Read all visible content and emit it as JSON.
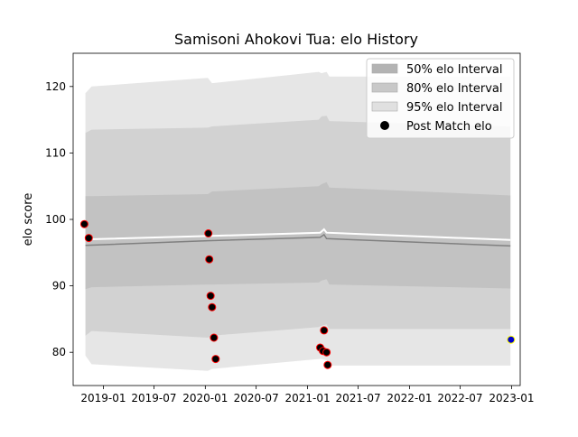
{
  "chart_data": {
    "type": "line",
    "title": "Samisoni Ahokovi Tua: elo History",
    "xlabel": "",
    "ylabel": "elo score",
    "xlim": [
      "2018-09-15",
      "2023-02-01"
    ],
    "ylim": [
      75,
      125
    ],
    "grid": false,
    "legend_placement": "top-right",
    "x_ticks": [
      "2019-01",
      "2019-07",
      "2020-01",
      "2020-07",
      "2021-01",
      "2021-07",
      "2022-01",
      "2022-07",
      "2023-01"
    ],
    "y_ticks": [
      80,
      90,
      100,
      110,
      120
    ],
    "legend": [
      {
        "label": "50% elo Interval",
        "kind": "band",
        "color": "#b3b3b3"
      },
      {
        "label": "80% elo Interval",
        "kind": "band",
        "color": "#c8c8c8"
      },
      {
        "label": "95% elo Interval",
        "kind": "band",
        "color": "#e0e0e0"
      },
      {
        "label": "Post Match elo",
        "kind": "marker",
        "color": "#000000"
      }
    ],
    "bands": {
      "x": [
        "2018-10-29",
        "2018-11-20",
        "2020-01-10",
        "2020-01-25",
        "2021-02-10",
        "2021-02-20",
        "2021-03-10",
        "2021-03-20",
        "2022-12-28"
      ],
      "p95_lower": [
        79.5,
        78.2,
        77.2,
        77.5,
        79.0,
        79.0,
        78.8,
        78.0,
        78.0
      ],
      "p95_upper": [
        119.0,
        120.0,
        121.3,
        120.5,
        122.2,
        122.0,
        122.2,
        121.5,
        121.5
      ],
      "p80_lower": [
        82.5,
        83.2,
        82.2,
        82.5,
        83.8,
        84.0,
        84.2,
        83.5,
        83.5
      ],
      "p80_upper": [
        113.0,
        113.5,
        113.8,
        114.0,
        115.0,
        115.5,
        115.6,
        114.8,
        114.0
      ],
      "p50_lower": [
        89.5,
        89.8,
        90.2,
        90.2,
        90.5,
        90.8,
        91.0,
        90.2,
        89.6
      ],
      "p50_upper": [
        103.5,
        103.5,
        103.8,
        104.2,
        105.0,
        105.3,
        105.6,
        104.8,
        103.6
      ]
    },
    "series": [
      {
        "name": "",
        "color": "#ffffff",
        "x": [
          "2018-10-29",
          "2020-01-10",
          "2021-02-15",
          "2021-03-01",
          "2021-03-10",
          "2022-12-28"
        ],
        "values": [
          97.0,
          97.5,
          98.0,
          98.5,
          98.0,
          96.9
        ]
      },
      {
        "name": "",
        "color": "#808080",
        "x": [
          "2018-10-29",
          "2020-01-10",
          "2021-02-15",
          "2021-03-01",
          "2021-03-10",
          "2022-12-28"
        ],
        "values": [
          96.1,
          96.8,
          97.3,
          97.7,
          97.1,
          96.0
        ]
      }
    ],
    "points": [
      {
        "x": "2018-10-25",
        "y": 99.3,
        "color": "#000000",
        "edge": "#ff0000"
      },
      {
        "x": "2018-11-10",
        "y": 97.2,
        "color": "#000000",
        "edge": "#ff0000"
      },
      {
        "x": "2020-01-12",
        "y": 97.9,
        "color": "#000000",
        "edge": "#ff0000"
      },
      {
        "x": "2020-01-15",
        "y": 94.0,
        "color": "#000000",
        "edge": "#ff0000"
      },
      {
        "x": "2020-01-20",
        "y": 88.5,
        "color": "#000000",
        "edge": "#ff0000"
      },
      {
        "x": "2020-01-25",
        "y": 86.8,
        "color": "#000000",
        "edge": "#ff0000"
      },
      {
        "x": "2020-02-01",
        "y": 82.2,
        "color": "#000000",
        "edge": "#ff0000"
      },
      {
        "x": "2020-02-07",
        "y": 79.0,
        "color": "#000000",
        "edge": "#ff0000"
      },
      {
        "x": "2021-02-15",
        "y": 80.7,
        "color": "#000000",
        "edge": "#ff0000"
      },
      {
        "x": "2021-02-25",
        "y": 80.2,
        "color": "#000000",
        "edge": "#ff0000"
      },
      {
        "x": "2021-03-01",
        "y": 83.3,
        "color": "#000000",
        "edge": "#ff0000"
      },
      {
        "x": "2021-03-10",
        "y": 80.0,
        "color": "#000000",
        "edge": "#ff0000"
      },
      {
        "x": "2021-03-14",
        "y": 78.1,
        "color": "#000000",
        "edge": "#ff0000"
      },
      {
        "x": "2022-12-30",
        "y": 81.9,
        "color": "#0000cc",
        "edge": "#ffff00"
      }
    ]
  }
}
